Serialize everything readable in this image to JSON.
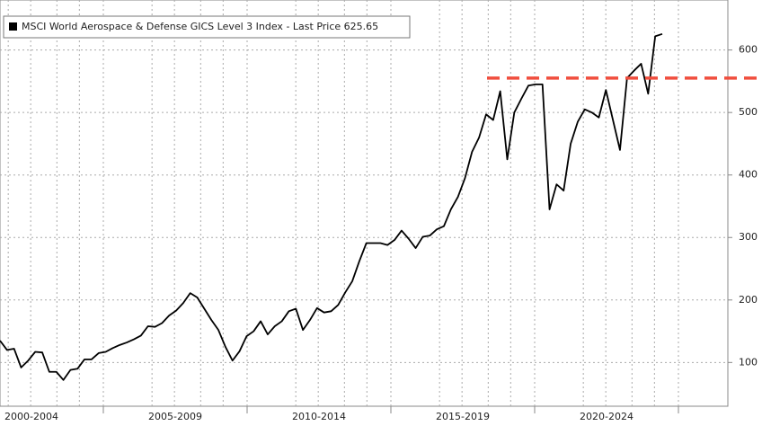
{
  "chart_data": {
    "type": "line",
    "legend": "MSCI World Aerospace & Defense GICS Level 3 Index - Last Price 625.65",
    "period_labels": [
      "2000-2004",
      "2005-2009",
      "2010-2014",
      "2015-2019",
      "2020-2024"
    ],
    "series": [
      {
        "name": "MSCI World Aerospace & Defense GICS Level 3 Index",
        "color": "#000000",
        "values": [
          135,
          120,
          122,
          92,
          103,
          117,
          116,
          85,
          85,
          72,
          88,
          90,
          105,
          105,
          115,
          117,
          123,
          128,
          132,
          137,
          143,
          158,
          157,
          163,
          175,
          183,
          195,
          211,
          204,
          186,
          168,
          152,
          125,
          103,
          118,
          142,
          150,
          166,
          145,
          158,
          166,
          182,
          186,
          152,
          168,
          187,
          180,
          182,
          192,
          212,
          230,
          262,
          291,
          291,
          291,
          288,
          296,
          311,
          298,
          283,
          301,
          303,
          313,
          318,
          345,
          365,
          395,
          437,
          460,
          497,
          488,
          534,
          425,
          500,
          522,
          543,
          545,
          545,
          345,
          385,
          375,
          450,
          485,
          505,
          500,
          492,
          536,
          488,
          440,
          555,
          567,
          578,
          530,
          622,
          625.65
        ]
      }
    ],
    "reference_line": {
      "value": 555,
      "color": "#f04e3e"
    },
    "ylim": [
      30,
      680
    ],
    "yticks": [
      100,
      200,
      300,
      400,
      500,
      600
    ],
    "grid": true
  }
}
